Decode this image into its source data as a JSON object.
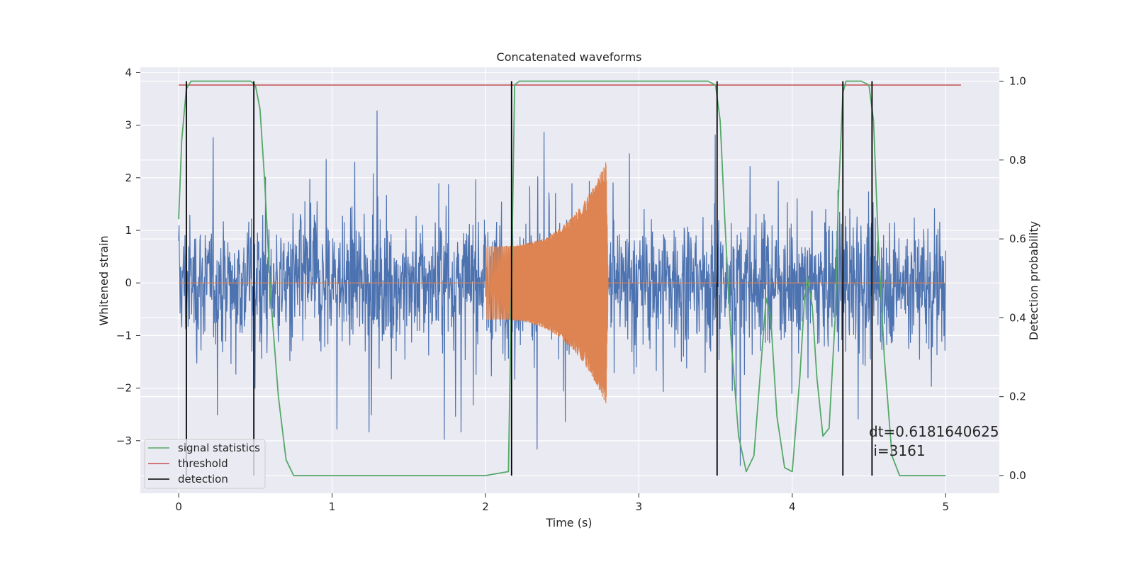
{
  "chart_data": {
    "type": "line",
    "title": "Concatenated waveforms",
    "xlabel": "Time (s)",
    "ylabel": "Whitened strain",
    "y2label": "Detection probability",
    "xlim": [
      -0.25,
      5.35
    ],
    "ylim": [
      -4.0,
      4.1
    ],
    "y2lim": [
      -0.045,
      1.035
    ],
    "xticks": [
      0,
      1,
      2,
      3,
      4,
      5
    ],
    "xtick_labels": [
      "0",
      "1",
      "2",
      "3",
      "4",
      "5"
    ],
    "yticks": [
      4,
      3,
      2,
      1,
      0,
      -1,
      -2,
      -3
    ],
    "ytick_labels": [
      "4",
      "3",
      "2",
      "1",
      "0",
      "−1",
      "−2",
      "−3"
    ],
    "y2ticks": [
      1.0,
      0.8,
      0.6,
      0.4,
      0.2,
      0.0
    ],
    "y2tick_labels": [
      "1.0",
      "0.8",
      "0.6",
      "0.4",
      "0.2",
      "0.0"
    ],
    "grid": true,
    "legend_position": "lower-left",
    "noise": {
      "x_range": [
        0,
        5
      ],
      "amplitude": 2.9,
      "color": "#4c72b0"
    },
    "chirp": {
      "x_range": [
        2.0,
        2.8
      ],
      "start_amplitude": 0.7,
      "peak_amplitude": 2.4,
      "color": "#dd8452"
    },
    "series": [
      {
        "name": "signal statistics",
        "axis": "right",
        "color": "#55a868",
        "x": [
          0.0,
          0.02,
          0.05,
          0.08,
          0.12,
          0.2,
          0.3,
          0.4,
          0.47,
          0.5,
          0.53,
          0.56,
          0.6,
          0.65,
          0.7,
          0.75,
          1.0,
          1.5,
          2.0,
          2.15,
          2.17,
          2.19,
          2.22,
          2.5,
          3.0,
          3.45,
          3.5,
          3.53,
          3.56,
          3.6,
          3.65,
          3.7,
          3.75,
          3.8,
          3.83,
          3.86,
          3.9,
          3.95,
          4.0,
          4.05,
          4.08,
          4.1,
          4.13,
          4.16,
          4.2,
          4.24,
          4.28,
          4.3,
          4.33,
          4.35,
          4.4,
          4.45,
          4.5,
          4.53,
          4.56,
          4.6,
          4.65,
          4.7,
          4.75,
          5.0
        ],
        "y": [
          0.65,
          0.85,
          0.98,
          1.0,
          1.0,
          1.0,
          1.0,
          1.0,
          1.0,
          0.99,
          0.93,
          0.75,
          0.45,
          0.2,
          0.04,
          0.0,
          0.0,
          0.0,
          0.0,
          0.01,
          0.5,
          0.99,
          1.0,
          1.0,
          1.0,
          1.0,
          0.99,
          0.9,
          0.65,
          0.35,
          0.1,
          0.01,
          0.05,
          0.3,
          0.45,
          0.4,
          0.15,
          0.02,
          0.01,
          0.25,
          0.45,
          0.5,
          0.43,
          0.25,
          0.1,
          0.12,
          0.4,
          0.7,
          0.97,
          1.0,
          1.0,
          1.0,
          0.99,
          0.9,
          0.6,
          0.3,
          0.05,
          0.0,
          0.0,
          0.0
        ]
      },
      {
        "name": "threshold",
        "axis": "right",
        "color": "#c44e52",
        "x": [
          0.0,
          5.1
        ],
        "y": [
          0.99,
          0.99
        ]
      },
      {
        "name": "detection",
        "axis": "right",
        "color": "#000000",
        "type": "vlines",
        "x": [
          0.05,
          0.49,
          2.17,
          3.51,
          4.33,
          4.52
        ],
        "y_range": [
          0.0,
          1.0
        ]
      }
    ],
    "annotation": {
      "line1": "dt=0.6181640625",
      "line2": " i=3161",
      "x": 4.5,
      "y_prob": 0.1
    }
  }
}
